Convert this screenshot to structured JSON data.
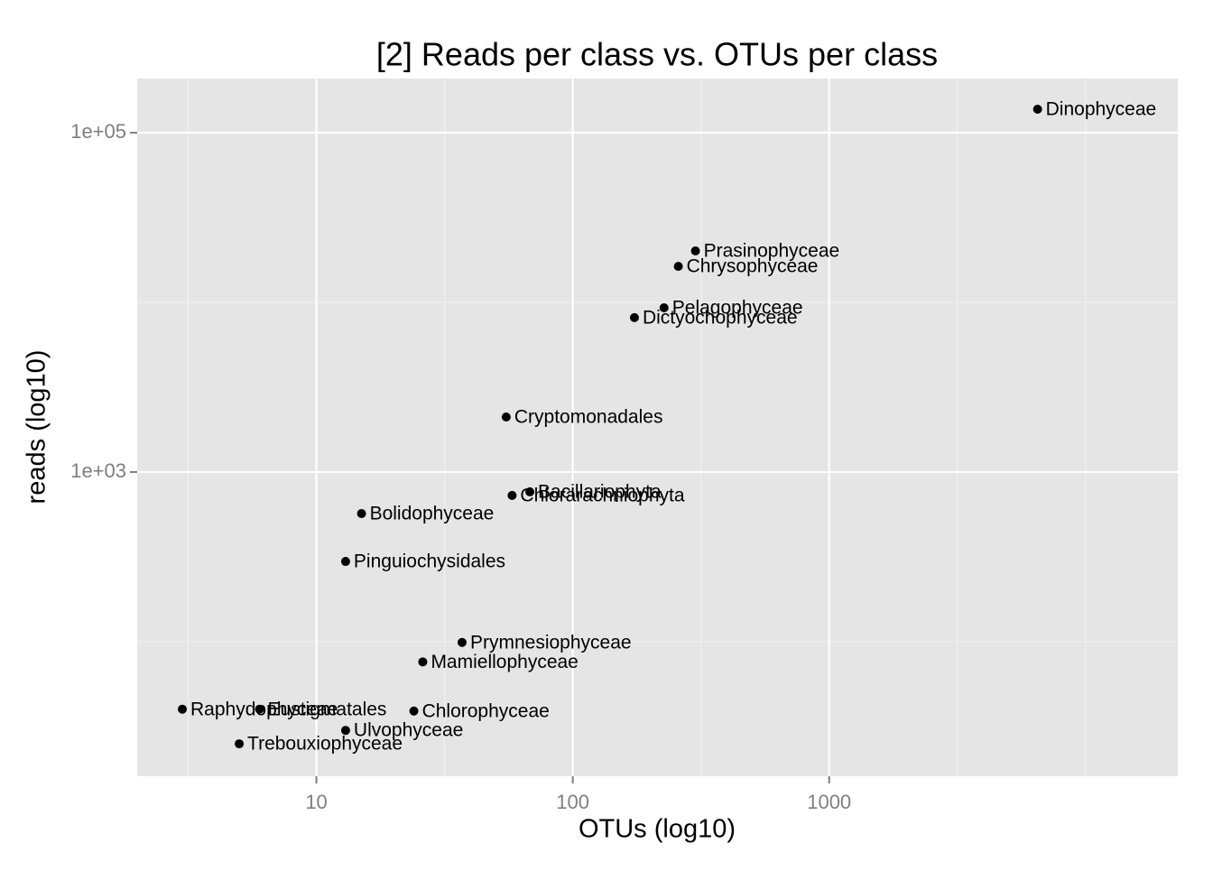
{
  "chart_data": {
    "type": "scatter",
    "title": "[2] Reads per class vs. OTUs per class",
    "x_label": "OTUs (log10)",
    "y_label": "reads (log10)",
    "x_scale": "log",
    "y_scale": "log",
    "grid": true,
    "color": "#000000",
    "xlim": [
      2,
      22900
    ],
    "ylim": [
      16.1,
      208600
    ],
    "xticks": [
      10,
      100,
      1000
    ],
    "yticks": [
      {
        "value": 1000,
        "label": "1e+03"
      },
      {
        "value": 100000,
        "label": "1e+05"
      }
    ],
    "labels": [
      "Dinophyceae",
      "Prasinophyceae",
      "Chrysophyceae",
      "Pelagophyceae",
      "Dictyochophyceae",
      "Cryptomonadales",
      "Bacillariophyta",
      "Chlorarachniophyta",
      "Bolidophyceae",
      "Pinguiochysidales",
      "Prymnesiophyceae",
      "Mamiellophyceae",
      "Raphydophyceae",
      "Eustigmatales",
      "Chlorophyceae",
      "Ulvophyceae",
      "Trebouxiophyceae"
    ],
    "x": [
      6500,
      301,
      258,
      227,
      174,
      55,
      68,
      58,
      15,
      13,
      37,
      26,
      3,
      6,
      24,
      13,
      5
    ],
    "y": [
      137500,
      20100,
      16300,
      9290,
      8130,
      2110,
      764,
      728,
      569,
      297,
      99,
      76,
      40,
      40,
      39,
      30,
      25
    ]
  }
}
